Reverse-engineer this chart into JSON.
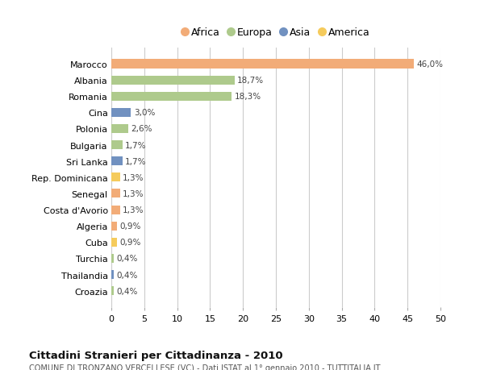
{
  "countries": [
    "Marocco",
    "Albania",
    "Romania",
    "Cina",
    "Polonia",
    "Bulgaria",
    "Sri Lanka",
    "Rep. Dominicana",
    "Senegal",
    "Costa d'Avorio",
    "Algeria",
    "Cuba",
    "Turchia",
    "Thailandia",
    "Croazia"
  ],
  "values": [
    46.0,
    18.7,
    18.3,
    3.0,
    2.6,
    1.7,
    1.7,
    1.3,
    1.3,
    1.3,
    0.9,
    0.9,
    0.4,
    0.4,
    0.4
  ],
  "labels": [
    "46,0%",
    "18,7%",
    "18,3%",
    "3,0%",
    "2,6%",
    "1,7%",
    "1,7%",
    "1,3%",
    "1,3%",
    "1,3%",
    "0,9%",
    "0,9%",
    "0,4%",
    "0,4%",
    "0,4%"
  ],
  "continents": [
    "Africa",
    "Europa",
    "Europa",
    "Asia",
    "Europa",
    "Europa",
    "Asia",
    "America",
    "Africa",
    "Africa",
    "Africa",
    "America",
    "Europa",
    "Asia",
    "Europa"
  ],
  "continent_colors": {
    "Africa": "#F2AC78",
    "Europa": "#AECA8C",
    "Asia": "#7191C0",
    "America": "#F5CB5C"
  },
  "legend_order": [
    "Africa",
    "Europa",
    "Asia",
    "America"
  ],
  "xlim": [
    0,
    50
  ],
  "xticks": [
    0,
    5,
    10,
    15,
    20,
    25,
    30,
    35,
    40,
    45,
    50
  ],
  "title": "Cittadini Stranieri per Cittadinanza - 2010",
  "subtitle": "COMUNE DI TRONZANO VERCELLESE (VC) - Dati ISTAT al 1° gennaio 2010 - TUTTITALIA.IT",
  "bg_color": "#ffffff",
  "grid_color": "#cccccc",
  "bar_height": 0.55
}
